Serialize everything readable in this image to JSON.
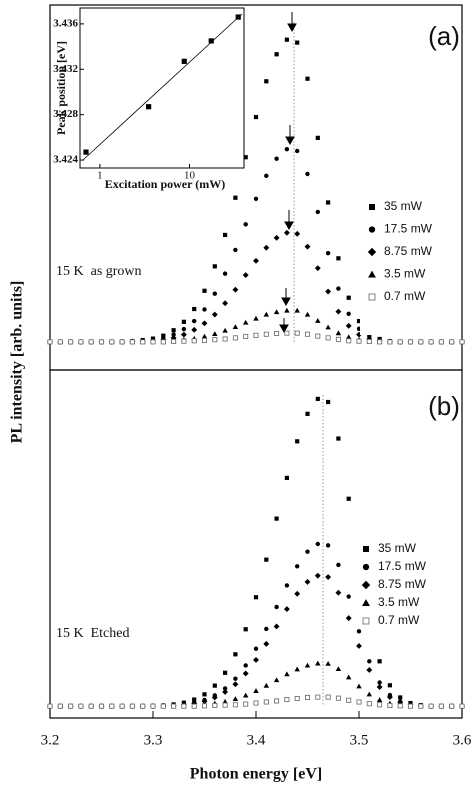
{
  "chart_data": [
    {
      "type": "scatter",
      "panel_label": "(a)",
      "annotation": "15 K  as grown",
      "ylabel": "PL intensity [arb. units]",
      "xlim": [
        3.2,
        3.6
      ],
      "ylim": [
        0,
        100
      ],
      "legend": "right",
      "x": [
        3.2,
        3.21,
        3.22,
        3.23,
        3.24,
        3.25,
        3.26,
        3.27,
        3.28,
        3.29,
        3.3,
        3.31,
        3.32,
        3.33,
        3.34,
        3.35,
        3.36,
        3.37,
        3.38,
        3.39,
        3.4,
        3.41,
        3.42,
        3.43,
        3.44,
        3.45,
        3.46,
        3.47,
        3.48,
        3.49,
        3.5,
        3.51,
        3.52,
        3.53,
        3.54,
        3.55,
        3.56,
        3.57,
        3.58,
        3.59,
        3.6
      ],
      "series": [
        {
          "name": "35 mW",
          "marker": "square",
          "color": "#000000",
          "values": [
            7.7,
            7.7,
            7.7,
            7.7,
            7.7,
            7.7,
            7.7,
            7.8,
            7.9,
            8.2,
            8.6,
            9.4,
            10.9,
            13.2,
            16.7,
            21.7,
            28.4,
            37.0,
            47.2,
            58.3,
            69.3,
            79.1,
            86.5,
            90.5,
            89.7,
            79.8,
            63.6,
            45.9,
            30.6,
            19.8,
            13.4,
            10.0,
            8.5,
            7.9,
            7.7,
            7.7,
            7.7,
            7.7,
            7.7,
            7.7,
            7.7
          ]
        },
        {
          "name": "17.5 mW",
          "marker": "circle",
          "color": "#000000",
          "values": [
            7.7,
            7.7,
            7.7,
            7.7,
            7.7,
            7.7,
            7.7,
            7.8,
            7.8,
            8.0,
            8.3,
            8.8,
            9.7,
            11.2,
            13.4,
            16.6,
            20.9,
            26.4,
            32.9,
            39.9,
            46.9,
            53.2,
            57.9,
            60.5,
            60.0,
            53.7,
            43.3,
            32.0,
            22.3,
            15.4,
            11.3,
            9.2,
            8.2,
            7.9,
            7.7,
            7.7,
            7.7,
            7.7,
            7.7,
            7.7,
            7.7
          ]
        },
        {
          "name": "8.75 mW",
          "marker": "diamond",
          "color": "#000000",
          "values": [
            7.7,
            7.7,
            7.7,
            7.7,
            7.7,
            7.7,
            7.7,
            7.7,
            7.8,
            7.9,
            8.0,
            8.3,
            8.8,
            9.7,
            11.0,
            12.8,
            15.2,
            18.3,
            22.0,
            26.0,
            29.9,
            33.5,
            36.2,
            37.6,
            37.3,
            33.8,
            27.9,
            21.5,
            16.0,
            12.1,
            9.7,
            8.5,
            8.0,
            7.8,
            7.7,
            7.7,
            7.7,
            7.7,
            7.7,
            7.7,
            7.7
          ]
        },
        {
          "name": "3.5 mW",
          "marker": "triangle",
          "color": "#000000",
          "values": [
            7.7,
            7.7,
            7.7,
            7.7,
            7.7,
            7.7,
            7.7,
            7.7,
            7.7,
            7.7,
            7.8,
            7.9,
            8.0,
            8.3,
            8.6,
            9.2,
            9.9,
            10.8,
            11.8,
            13.0,
            14.1,
            15.2,
            15.9,
            16.3,
            16.3,
            15.2,
            13.5,
            11.7,
            10.1,
            9.0,
            8.3,
            7.9,
            7.8,
            7.7,
            7.7,
            7.7,
            7.7,
            7.7,
            7.7,
            7.7,
            7.7
          ]
        },
        {
          "name": "0.7 mW",
          "marker": "open-square",
          "color": "#666666",
          "values": [
            7.7,
            7.7,
            7.7,
            7.7,
            7.7,
            7.7,
            7.7,
            7.7,
            7.7,
            7.7,
            7.7,
            7.7,
            7.8,
            7.9,
            8.0,
            8.1,
            8.3,
            8.5,
            8.8,
            9.2,
            9.5,
            9.8,
            10.0,
            10.1,
            10.1,
            9.8,
            9.3,
            8.8,
            8.4,
            8.0,
            7.9,
            7.8,
            7.7,
            7.7,
            7.7,
            7.7,
            7.7,
            7.7,
            7.7,
            7.7,
            7.7
          ]
        }
      ]
    },
    {
      "type": "scatter",
      "panel_label": "(b)",
      "annotation": "15 K  Etched",
      "xlabel": "Photon energy [eV]",
      "xlim": [
        3.2,
        3.6
      ],
      "xticks": [
        3.2,
        3.3,
        3.4,
        3.5,
        3.6
      ],
      "ylim": [
        0,
        100
      ],
      "legend": "right",
      "x": [
        3.2,
        3.21,
        3.22,
        3.23,
        3.24,
        3.25,
        3.26,
        3.27,
        3.28,
        3.29,
        3.3,
        3.31,
        3.32,
        3.33,
        3.34,
        3.35,
        3.36,
        3.37,
        3.38,
        3.39,
        3.4,
        3.41,
        3.42,
        3.43,
        3.44,
        3.45,
        3.46,
        3.47,
        3.48,
        3.49,
        3.5,
        3.51,
        3.52,
        3.53,
        3.54,
        3.55,
        3.56,
        3.57,
        3.58,
        3.59,
        3.6
      ],
      "series": [
        {
          "name": "35 mW",
          "marker": "square",
          "color": "#000000",
          "values": [
            3.4,
            3.4,
            3.4,
            3.4,
            3.4,
            3.4,
            3.4,
            3.4,
            3.4,
            3.4,
            3.5,
            3.6,
            3.9,
            4.4,
            5.3,
            6.8,
            9.3,
            13.0,
            18.3,
            25.5,
            34.7,
            45.5,
            57.3,
            69.0,
            79.5,
            87.4,
            91.7,
            90.8,
            80.3,
            63.0,
            44.1,
            27.8,
            16.3,
            9.4,
            5.9,
            4.3,
            3.7,
            3.4,
            3.4,
            3.4,
            3.4
          ]
        },
        {
          "name": "17.5 mW",
          "marker": "circle",
          "color": "#000000",
          "values": [
            3.4,
            3.4,
            3.4,
            3.4,
            3.4,
            3.4,
            3.4,
            3.4,
            3.4,
            3.4,
            3.5,
            3.5,
            3.7,
            3.9,
            4.4,
            5.2,
            6.5,
            8.5,
            11.3,
            15.1,
            19.9,
            25.6,
            31.9,
            38.1,
            43.6,
            47.8,
            50.0,
            49.6,
            44.0,
            34.9,
            24.9,
            16.3,
            10.2,
            6.6,
            4.7,
            3.9,
            3.5,
            3.4,
            3.4,
            3.4,
            3.4
          ]
        },
        {
          "name": "8.75 mW",
          "marker": "diamond",
          "color": "#000000",
          "values": [
            3.4,
            3.4,
            3.4,
            3.4,
            3.4,
            3.4,
            3.4,
            3.4,
            3.4,
            3.4,
            3.4,
            3.5,
            3.6,
            3.8,
            4.2,
            4.8,
            5.9,
            7.5,
            9.7,
            12.8,
            16.7,
            21.3,
            26.3,
            31.3,
            35.7,
            39.1,
            40.9,
            40.5,
            36.0,
            28.7,
            20.7,
            13.8,
            8.9,
            6.0,
            4.5,
            3.8,
            3.5,
            3.4,
            3.4,
            3.4,
            3.4
          ]
        },
        {
          "name": "3.5 mW",
          "marker": "triangle",
          "color": "#000000",
          "values": [
            3.4,
            3.4,
            3.4,
            3.4,
            3.4,
            3.4,
            3.4,
            3.4,
            3.4,
            3.4,
            3.4,
            3.4,
            3.4,
            3.5,
            3.7,
            3.9,
            4.2,
            4.7,
            5.5,
            6.5,
            7.8,
            9.3,
            10.9,
            12.6,
            14.0,
            15.1,
            15.7,
            15.6,
            14.1,
            11.7,
            9.1,
            6.8,
            5.2,
            4.2,
            3.7,
            3.5,
            3.4,
            3.4,
            3.4,
            3.4,
            3.4
          ]
        },
        {
          "name": "0.7 mW",
          "marker": "open-square",
          "color": "#666666",
          "values": [
            3.4,
            3.4,
            3.4,
            3.4,
            3.4,
            3.4,
            3.4,
            3.4,
            3.4,
            3.4,
            3.4,
            3.4,
            3.4,
            3.4,
            3.4,
            3.5,
            3.6,
            3.7,
            3.8,
            4.0,
            4.3,
            4.6,
            4.9,
            5.3,
            5.6,
            5.9,
            6.0,
            6.0,
            5.7,
            5.1,
            4.6,
            4.1,
            3.8,
            3.6,
            3.5,
            3.4,
            3.4,
            3.4,
            3.4,
            3.4,
            3.4
          ]
        }
      ]
    },
    {
      "type": "scatter",
      "xlabel": "Excitation power (mW)",
      "ylabel": "Peak position [eV]",
      "xscale": "log",
      "xlim": [
        0.6,
        40.6
      ],
      "xticks": [
        1,
        10
      ],
      "ylim": [
        3.4233,
        3.4374
      ],
      "yticks": [
        3.424,
        3.428,
        3.432,
        3.436
      ],
      "x": [
        0.7,
        3.5,
        8.75,
        17.5,
        35
      ],
      "series": [
        {
          "marker": "square",
          "color": "#000000",
          "values": [
            3.4247,
            3.4287,
            3.4327,
            3.4345,
            3.4366
          ]
        }
      ]
    }
  ]
}
